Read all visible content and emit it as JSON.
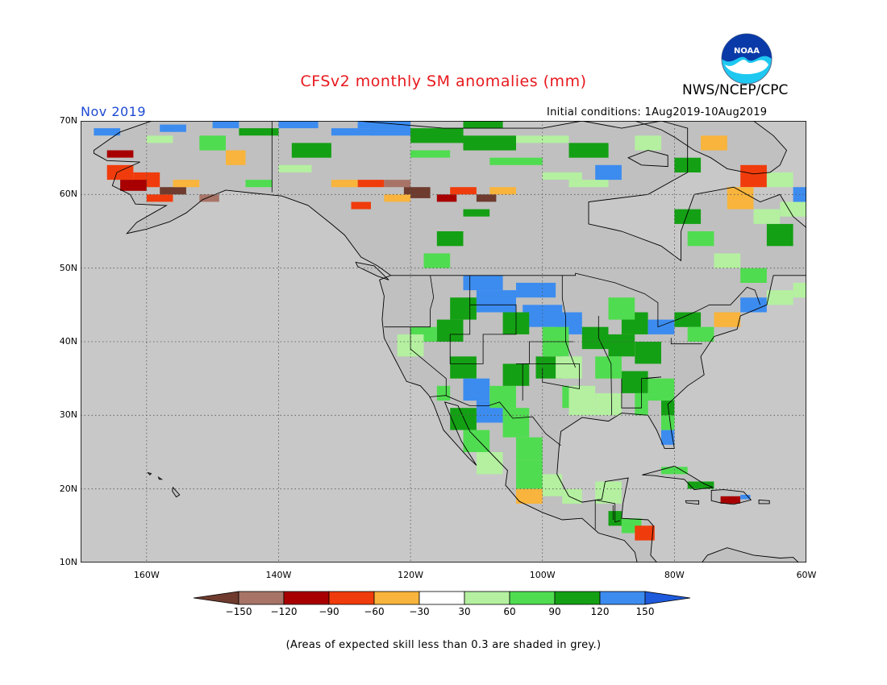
{
  "title": "CFSv2 monthly SM anomalies (mm)",
  "org_label": "NWS/NCEP/CPC",
  "logo_text": "NOAA",
  "target_month": "Nov 2019",
  "initial_conditions": "Initial conditions: 1Aug2019-10Aug2019",
  "footnote": "(Areas of expected skill less than 0.3 are shaded in grey.)",
  "map": {
    "lon_range": [
      -170,
      -60
    ],
    "lat_range": [
      10,
      70
    ],
    "lat_labels": [
      "70N",
      "60N",
      "50N",
      "40N",
      "30N",
      "20N",
      "10N"
    ],
    "lon_labels": [
      "160W",
      "140W",
      "120W",
      "100W",
      "80W",
      "60W"
    ],
    "lat_values": [
      70,
      60,
      50,
      40,
      30,
      20,
      10
    ],
    "lon_values": [
      -160,
      -140,
      -120,
      -100,
      -80,
      -60
    ],
    "ocean_color": "#c8c8c8",
    "no_skill_color": "#c0c0c0",
    "gridlines": "dotted"
  },
  "colorbar": {
    "labels": [
      "-150",
      "-120",
      "-90",
      "-60",
      "-30",
      "30",
      "60",
      "90",
      "120",
      "150"
    ],
    "colors": [
      "#6e3b2e",
      "#a87468",
      "#a80000",
      "#f03c0c",
      "#f8b43c",
      "#ffffff",
      "#b4f0a0",
      "#50dc50",
      "#14a014",
      "#3c8cf0",
      "#1e5adc"
    ]
  },
  "colors": {
    "title": "#e8191e",
    "month": "#1e4bd2",
    "logo_blue": "#0a3aa8",
    "logo_cyan": "#1ec8f0"
  }
}
